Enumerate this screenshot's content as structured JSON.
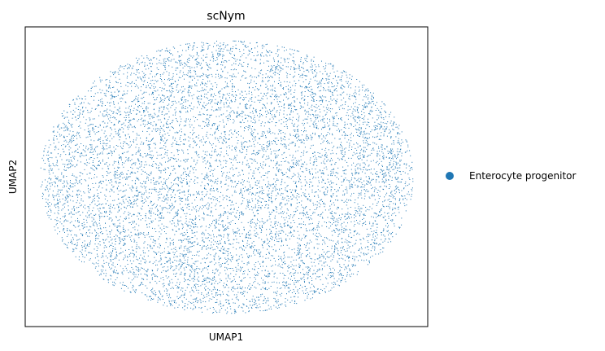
{
  "chart_data": {
    "type": "scatter",
    "title": "scNym",
    "xlabel": "UMAP1",
    "ylabel": "UMAP2",
    "xticks": [],
    "yticks": [],
    "grid": false,
    "legend_placement": "right",
    "series": [
      {
        "name": "Enterocyte progenitor",
        "color": "#1f77b4",
        "shape": "dense elliptical cloud of points",
        "center": [
          0,
          0
        ],
        "x_extent": [
          -1,
          1
        ],
        "y_extent": [
          -1,
          1
        ]
      }
    ],
    "xlim": [
      -1.08,
      1.08
    ],
    "ylim": [
      -1.1,
      1.1
    ]
  }
}
